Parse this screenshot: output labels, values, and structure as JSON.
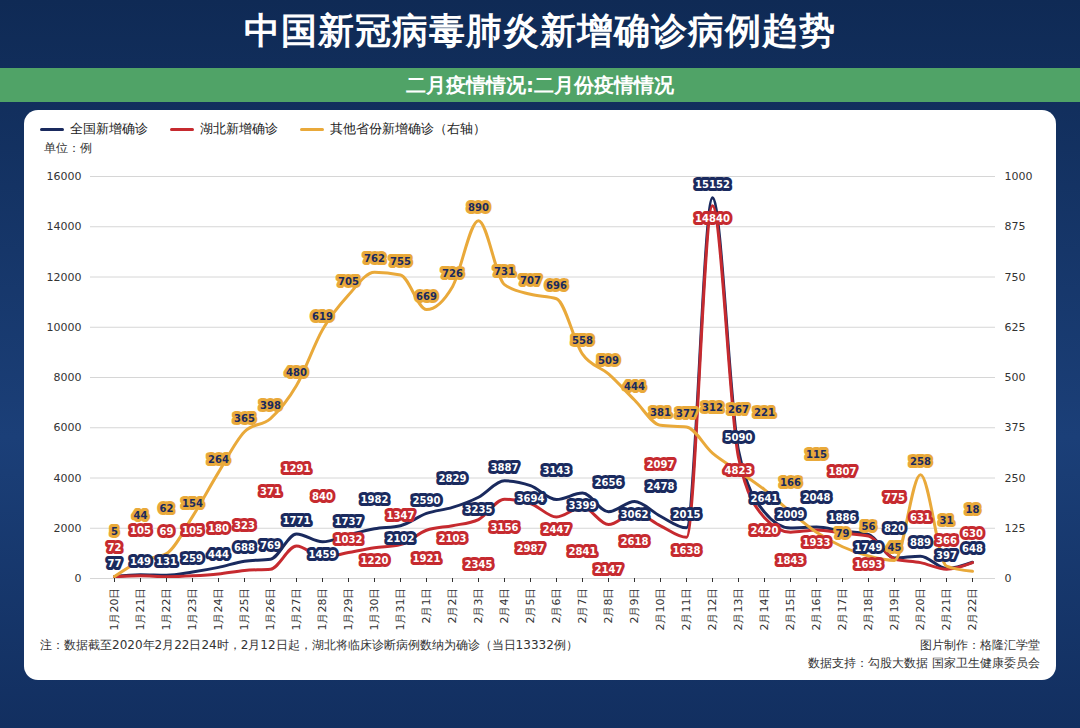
{
  "chart_data": {
    "type": "line",
    "title": "中国新冠病毒肺炎新增确诊病例趋势",
    "subtitle": "二月疫情情况:二月份疫情情况",
    "ylabel": "单位：例",
    "note": "注：数据截至2020年2月22日24时，2月12日起，湖北将临床诊断病例数纳为确诊（当日13332例）",
    "credit": "图片制作：格隆汇学堂",
    "source": "数据支持：勾股大数据 国家卫生健康委员会",
    "categories": [
      "1月20日",
      "1月21日",
      "1月22日",
      "1月23日",
      "1月24日",
      "1月25日",
      "1月26日",
      "1月27日",
      "1月28日",
      "1月29日",
      "1月30日",
      "1月31日",
      "2月1日",
      "2月2日",
      "2月3日",
      "2月4日",
      "2月5日",
      "2月6日",
      "2月7日",
      "2月8日",
      "2月9日",
      "2月10日",
      "2月11日",
      "2月12日",
      "2月13日",
      "2月14日",
      "2月15日",
      "2月16日",
      "2月17日",
      "2月18日",
      "2月19日",
      "2月20日",
      "2月21日",
      "2月22日"
    ],
    "series": [
      {
        "name": "全国新增确诊",
        "color": "#1a2a5e",
        "values": [
          77,
          149,
          131,
          259,
          444,
          688,
          769,
          1771,
          1459,
          1737,
          1982,
          2102,
          2590,
          2829,
          3235,
          3887,
          3694,
          3143,
          3399,
          2656,
          3062,
          2478,
          2015,
          15152,
          5090,
          2641,
          2009,
          2048,
          1886,
          1749,
          820,
          889,
          397,
          648
        ]
      },
      {
        "name": "湖北新增确诊",
        "color": "#c62a2f",
        "values": [
          72,
          105,
          69,
          105,
          180,
          323,
          371,
          1291,
          840,
          1032,
          1220,
          1347,
          1921,
          2103,
          2345,
          3156,
          2987,
          2447,
          2841,
          2147,
          2618,
          2097,
          1638,
          14840,
          4823,
          2420,
          1843,
          1933,
          1807,
          1693,
          775,
          631,
          366,
          630
        ]
      },
      {
        "name": "其他省份新增确诊（右轴）",
        "color": "#e9a93a",
        "axis": "y2",
        "values": [
          5,
          44,
          62,
          154,
          264,
          365,
          398,
          480,
          619,
          705,
          762,
          755,
          669,
          726,
          890,
          731,
          707,
          696,
          558,
          509,
          444,
          381,
          377,
          312,
          267,
          221,
          166,
          115,
          79,
          56,
          45,
          258,
          31,
          18
        ]
      }
    ],
    "ylim": [
      0,
      16000
    ],
    "yticks": [
      0,
      2000,
      4000,
      6000,
      8000,
      10000,
      12000,
      14000,
      16000
    ],
    "y2lim": [
      0,
      1000
    ],
    "y2ticks": [
      0,
      125,
      250,
      375,
      500,
      625,
      750,
      875,
      1000
    ],
    "grid": true,
    "legend": "top-left",
    "data_labels": true
  }
}
